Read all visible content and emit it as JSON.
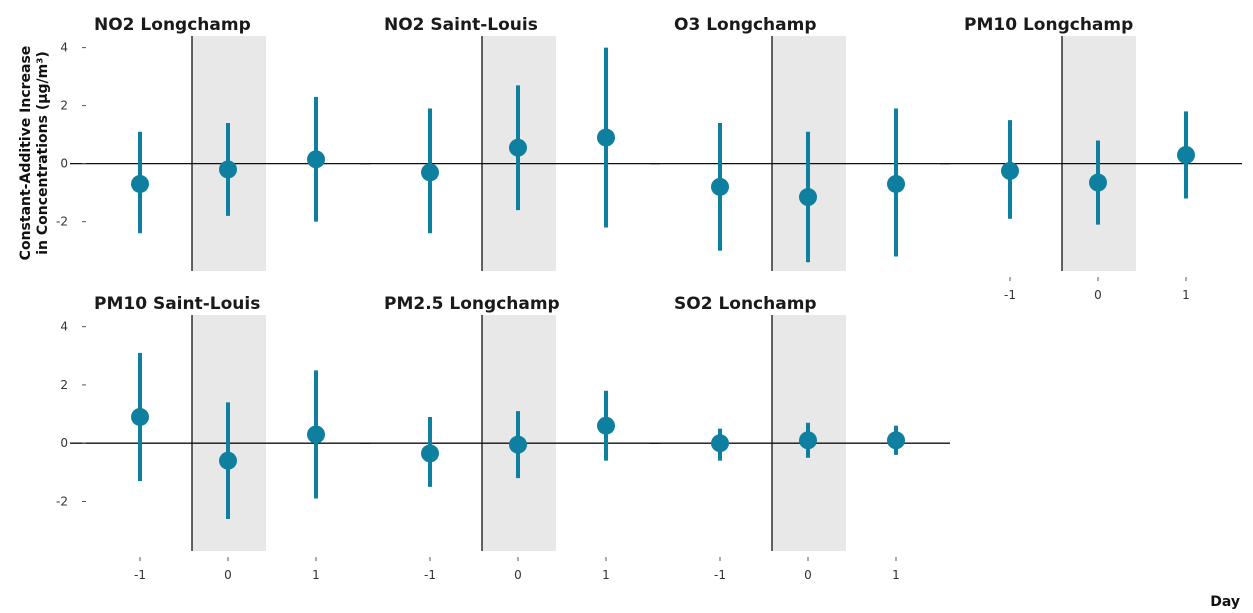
{
  "chart_data": {
    "type": "scatter",
    "subtype": "point-range (estimate with interval)",
    "xlabel": "Day",
    "ylabel_lines": [
      "Constant-Additive Increase",
      "in Concentrations (µg/m³)"
    ],
    "x_categories": [
      "-1",
      "0",
      "1"
    ],
    "y_ticks": [
      "4",
      "2",
      "0",
      "-2"
    ],
    "ylim": [
      -3.7,
      4.4
    ],
    "highlight_category": "0",
    "colors": {
      "point": "#0f7f9f",
      "highlight_band": "#e8e8e8",
      "reference_line": "#111111"
    },
    "panels": [
      {
        "title": "NO2 Longchamp",
        "points": [
          {
            "x": "-1",
            "est": -0.7,
            "lo": -2.4,
            "hi": 1.1
          },
          {
            "x": "0",
            "est": -0.2,
            "lo": -1.8,
            "hi": 1.4
          },
          {
            "x": "1",
            "est": 0.15,
            "lo": -2.0,
            "hi": 2.3
          }
        ]
      },
      {
        "title": "NO2 Saint-Louis",
        "points": [
          {
            "x": "-1",
            "est": -0.3,
            "lo": -2.4,
            "hi": 1.9
          },
          {
            "x": "0",
            "est": 0.55,
            "lo": -1.6,
            "hi": 2.7
          },
          {
            "x": "1",
            "est": 0.9,
            "lo": -2.2,
            "hi": 4.0
          }
        ]
      },
      {
        "title": "O3 Longchamp",
        "points": [
          {
            "x": "-1",
            "est": -0.8,
            "lo": -3.0,
            "hi": 1.4
          },
          {
            "x": "0",
            "est": -1.15,
            "lo": -3.4,
            "hi": 1.1
          },
          {
            "x": "1",
            "est": -0.7,
            "lo": -3.2,
            "hi": 1.9
          }
        ]
      },
      {
        "title": "PM10 Longchamp",
        "points": [
          {
            "x": "-1",
            "est": -0.25,
            "lo": -1.9,
            "hi": 1.5
          },
          {
            "x": "0",
            "est": -0.65,
            "lo": -2.1,
            "hi": 0.8
          },
          {
            "x": "1",
            "est": 0.3,
            "lo": -1.2,
            "hi": 1.8
          }
        ]
      },
      {
        "title": "PM10 Saint-Louis",
        "points": [
          {
            "x": "-1",
            "est": 0.9,
            "lo": -1.3,
            "hi": 3.1
          },
          {
            "x": "0",
            "est": -0.6,
            "lo": -2.6,
            "hi": 1.4
          },
          {
            "x": "1",
            "est": 0.3,
            "lo": -1.9,
            "hi": 2.5
          }
        ]
      },
      {
        "title": "PM2.5 Longchamp",
        "points": [
          {
            "x": "-1",
            "est": -0.35,
            "lo": -1.5,
            "hi": 0.9
          },
          {
            "x": "0",
            "est": -0.05,
            "lo": -1.2,
            "hi": 1.1
          },
          {
            "x": "1",
            "est": 0.6,
            "lo": -0.6,
            "hi": 1.8
          }
        ]
      },
      {
        "title": "SO2 Lonchamp",
        "points": [
          {
            "x": "-1",
            "est": 0.0,
            "lo": -0.6,
            "hi": 0.5
          },
          {
            "x": "0",
            "est": 0.1,
            "lo": -0.5,
            "hi": 0.7
          },
          {
            "x": "1",
            "est": 0.1,
            "lo": -0.4,
            "hi": 0.6
          }
        ]
      }
    ]
  }
}
